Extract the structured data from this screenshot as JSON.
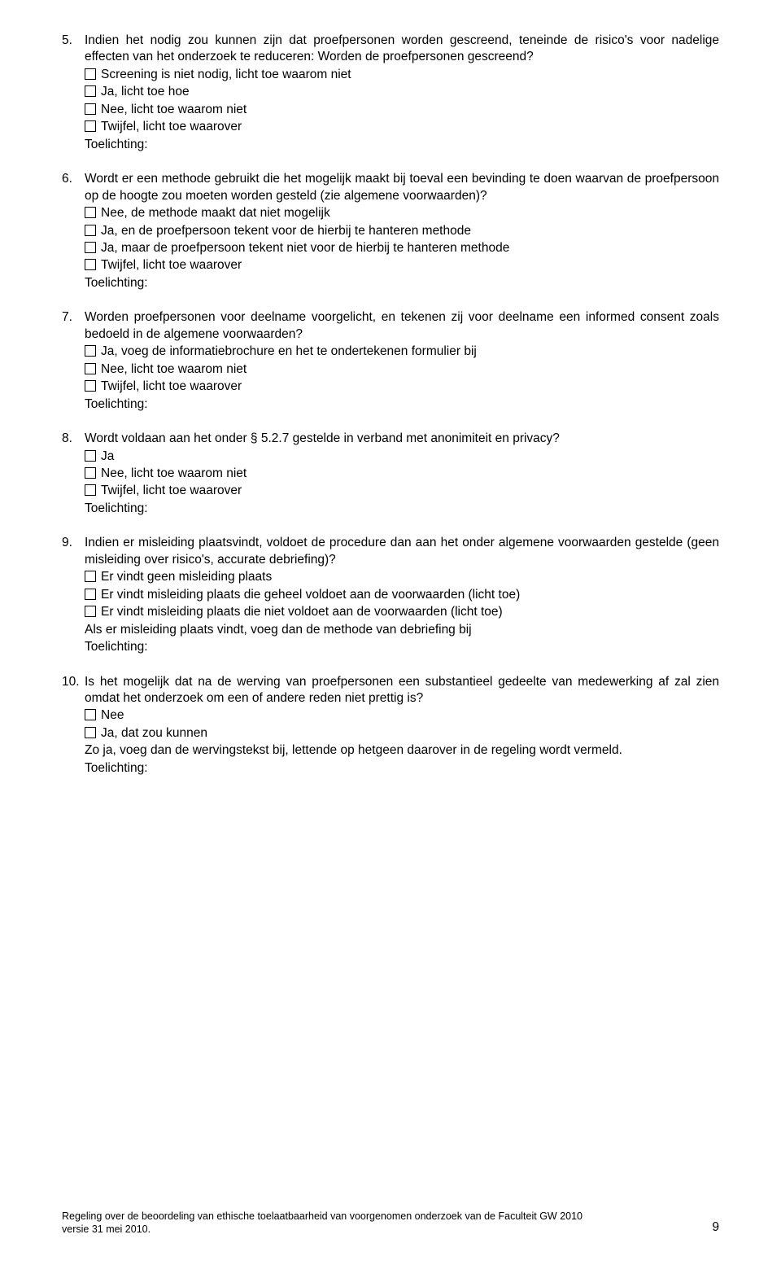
{
  "questions": [
    {
      "num": "5.",
      "text": "Indien het nodig zou kunnen zijn dat proefpersonen worden gescreend, teneinde de risico's voor nadelige effecten van het onderzoek te reduceren: Worden de proefpersonen gescreend?",
      "options": [
        "Screening is niet nodig, licht toe waarom niet",
        "Ja, licht toe hoe",
        "Nee, licht toe waarom niet",
        "Twijfel, licht toe waarover"
      ],
      "toelichting": "Toelichting:"
    },
    {
      "num": "6.",
      "text": "Wordt er een methode gebruikt die het mogelijk maakt bij toeval een bevinding te doen waarvan de proefpersoon op de hoogte zou moeten worden gesteld (zie algemene voorwaarden)?",
      "options": [
        "Nee, de methode maakt dat niet mogelijk",
        "Ja, en de proefpersoon tekent voor de hierbij te hanteren methode",
        "Ja, maar de proefpersoon tekent niet voor de hierbij te hanteren methode",
        "Twijfel, licht toe waarover"
      ],
      "toelichting": "Toelichting:"
    },
    {
      "num": "7.",
      "text": "Worden proefpersonen voor deelname voorgelicht, en tekenen zij voor deelname een informed consent zoals bedoeld in de algemene voorwaarden?",
      "options": [
        "Ja, voeg de informatiebrochure en het te ondertekenen formulier bij",
        "Nee, licht toe waarom niet",
        "Twijfel, licht toe waarover"
      ],
      "toelichting": "Toelichting:"
    },
    {
      "num": "8.",
      "text": "Wordt voldaan aan het onder § 5.2.7 gestelde in verband met anonimiteit en privacy?",
      "options": [
        "Ja",
        "Nee, licht toe waarom niet",
        "Twijfel, licht toe waarover"
      ],
      "toelichting": "Toelichting:"
    },
    {
      "num": "9.",
      "text": "Indien er misleiding plaatsvindt, voldoet de procedure dan aan het onder algemene voorwaarden gestelde (geen misleiding over risico's, accurate debriefing)?",
      "options": [
        "Er vindt geen misleiding plaats",
        "Er vindt misleiding plaats die geheel voldoet aan de voorwaarden (licht toe)",
        "Er vindt misleiding plaats die niet voldoet aan de voorwaarden (licht toe)"
      ],
      "extra_line": "Als er misleiding plaats vindt, voeg dan de methode van debriefing bij",
      "toelichting": "Toelichting:"
    },
    {
      "num": "10.",
      "text": "Is het mogelijk dat na de werving van proefpersonen een substantieel gedeelte van medewerking af zal zien omdat het onderzoek om een of andere reden niet prettig is?",
      "options": [
        "Nee",
        "Ja, dat zou kunnen"
      ],
      "extra_line": "Zo ja, voeg dan de wervingstekst bij, lettende op hetgeen daarover in de regeling wordt vermeld.",
      "toelichting": "Toelichting:"
    }
  ],
  "footer": {
    "left_line1": "Regeling over de beoordeling van ethische toelaatbaarheid van voorgenomen onderzoek van de Faculteit GW 2010",
    "left_line2": "versie 31 mei 2010.",
    "page_number": "9"
  }
}
